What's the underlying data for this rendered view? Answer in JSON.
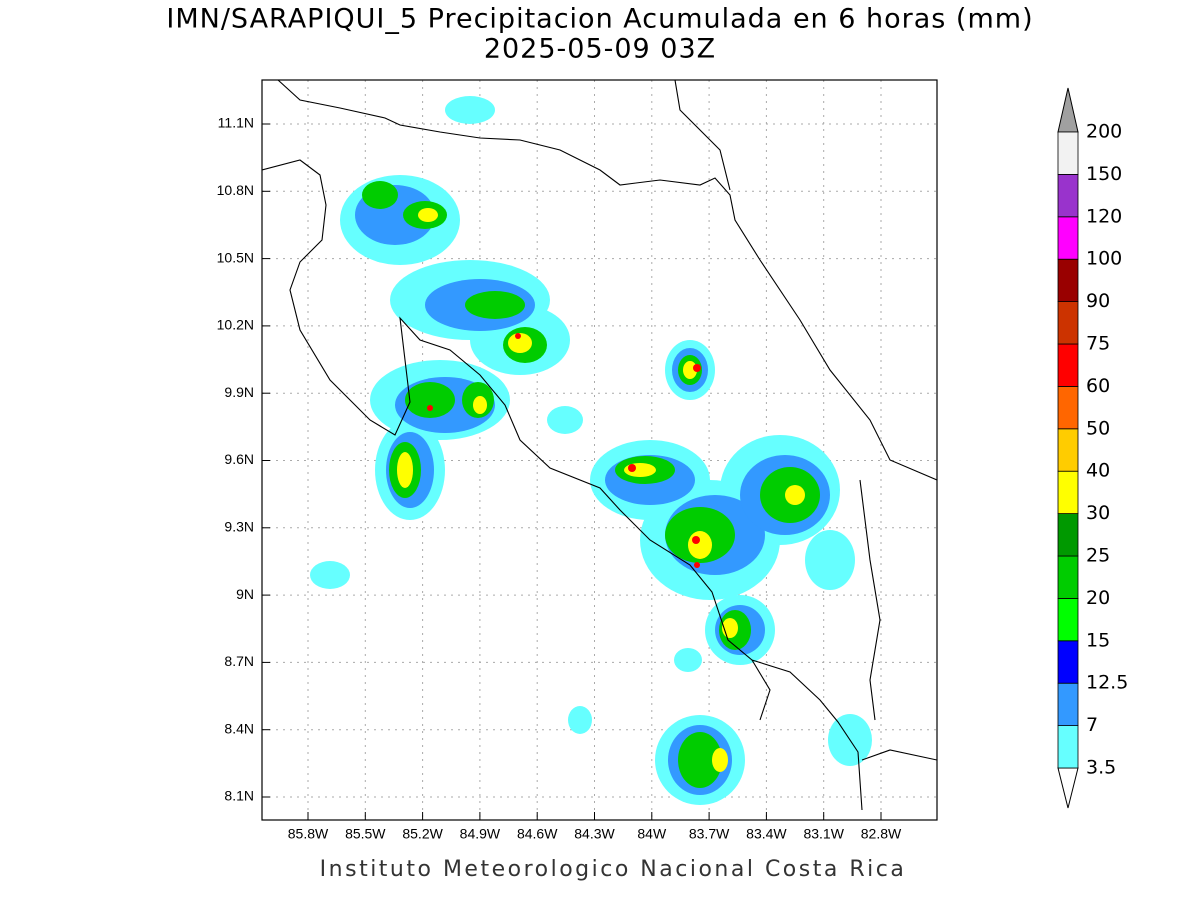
{
  "title": "IMN/SARAPIQUI_5 Precipitacion Acumulada en 6 horas (mm)",
  "subtitle": "2025-05-09 03Z",
  "map": {
    "lon_labels": [
      "85.8W",
      "85.5W",
      "85.2W",
      "84.9W",
      "84.6W",
      "84.3W",
      "84W",
      "83.7W",
      "83.4W",
      "83.1W",
      "82.8W"
    ],
    "lat_labels": [
      "11.1N",
      "10.8N",
      "10.5N",
      "10.2N",
      "9.9N",
      "9.6N",
      "9.3N",
      "9N",
      "8.7N",
      "8.4N",
      "8.1N"
    ]
  },
  "colorbar": {
    "levels": [
      3.5,
      7,
      12.5,
      15,
      20,
      25,
      30,
      40,
      50,
      60,
      75,
      90,
      100,
      120,
      150,
      200
    ],
    "colors": [
      "#66ffff",
      "#3399ff",
      "#0000ff",
      "#00ff00",
      "#00cc00",
      "#009900",
      "#ffff00",
      "#ffcc00",
      "#ff6600",
      "#ff0000",
      "#cc3300",
      "#990000",
      "#ff00ff",
      "#9933cc",
      "#f2f2f2"
    ]
  },
  "footer": "Instituto Meteorologico Nacional Costa Rica"
}
